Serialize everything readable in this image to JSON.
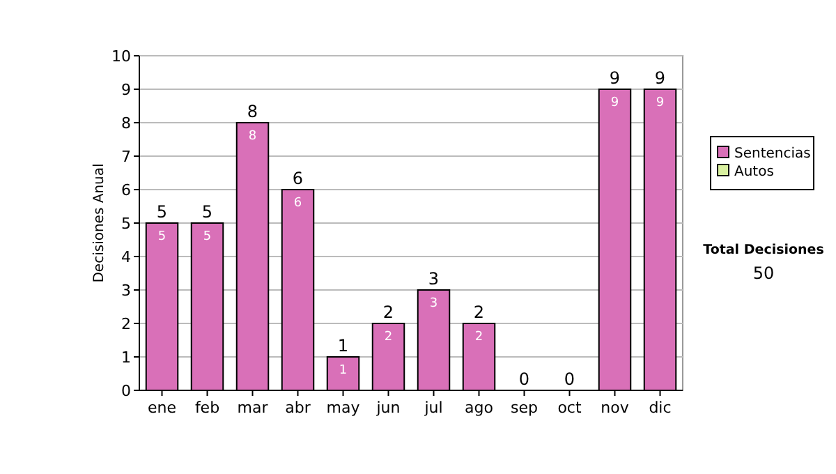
{
  "chart_data": {
    "type": "bar",
    "stacked": true,
    "ylabel": "Decisiones Anual",
    "categories": [
      "ene",
      "feb",
      "mar",
      "abr",
      "may",
      "jun",
      "jul",
      "ago",
      "sep",
      "oct",
      "nov",
      "dic"
    ],
    "series": [
      {
        "name": "Sentencias",
        "color": "#d970b8",
        "values": [
          5,
          5,
          8,
          6,
          1,
          2,
          3,
          2,
          0,
          0,
          9,
          9
        ],
        "value_labels": [
          "5",
          "5",
          "8",
          "6",
          "1",
          "2",
          "3",
          "2",
          null,
          null,
          "9",
          "9"
        ]
      },
      {
        "name": "Autos",
        "color": "#d9f0a0",
        "values": [
          0,
          0,
          0,
          0,
          0,
          0,
          0,
          0,
          0,
          0,
          0,
          0
        ]
      }
    ],
    "totals": [
      "5",
      "5",
      "8",
      "6",
      "1",
      "2",
      "3",
      "2",
      "0",
      "0",
      "9",
      "9"
    ],
    "ylim": [
      0,
      10
    ],
    "yticks": [
      0,
      1,
      2,
      3,
      4,
      5,
      6,
      7,
      8,
      9,
      10
    ],
    "grid": "y",
    "legend": "right",
    "annotations": [
      "Total Decisiones",
      "50"
    ]
  }
}
